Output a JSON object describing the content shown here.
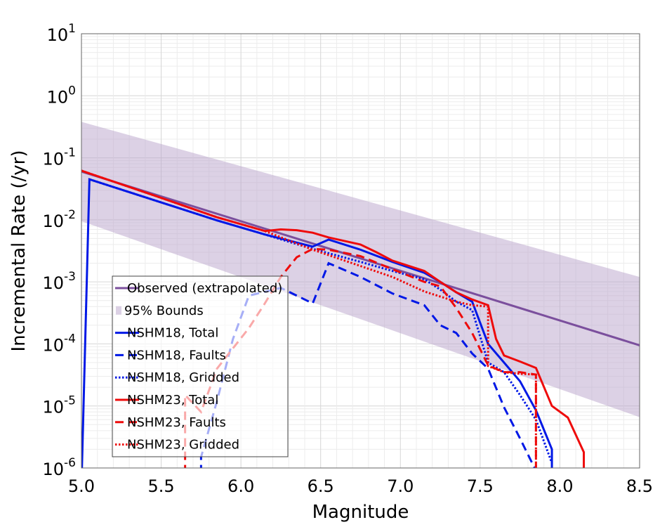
{
  "chart_data": {
    "type": "line",
    "xlabel": "Magnitude",
    "ylabel": "Incremental Rate (/yr)",
    "xlim": [
      5.0,
      8.5
    ],
    "ylim_log10": [
      -6,
      1
    ],
    "y_scale": "log",
    "grid": true,
    "x_ticks": [
      "5.0",
      "5.5",
      "6.0",
      "6.5",
      "7.0",
      "7.5",
      "8.0",
      "8.5"
    ],
    "y_ticks": [
      {
        "base": "10",
        "exp": "1"
      },
      {
        "base": "10",
        "exp": "0"
      },
      {
        "base": "10",
        "exp": "-1"
      },
      {
        "base": "10",
        "exp": "-2"
      },
      {
        "base": "10",
        "exp": "-3"
      },
      {
        "base": "10",
        "exp": "-4"
      },
      {
        "base": "10",
        "exp": "-5"
      },
      {
        "base": "10",
        "exp": "-6"
      }
    ],
    "legend_position": "bottom-left",
    "band": {
      "name": "95% Bounds",
      "color": "#b9a3cc",
      "x": [
        5.0,
        8.5
      ],
      "upper": [
        0.38,
        0.0012
      ],
      "lower": [
        0.0095,
        6.6e-06
      ]
    },
    "series": [
      {
        "name": "Observed (extrapolated)",
        "color": "#7b4f9d",
        "dash": "solid",
        "x": [
          5.0,
          8.5
        ],
        "y": [
          0.06,
          9.5e-05
        ]
      },
      {
        "name": "NSHM18, Total",
        "color": "#0018e6",
        "dash": "solid",
        "x": [
          5.0,
          5.05,
          5.45,
          5.85,
          6.15,
          6.45,
          6.55,
          6.75,
          6.95,
          7.15,
          7.25,
          7.35,
          7.45,
          7.55,
          7.65,
          7.75,
          7.85,
          7.95,
          7.95
        ],
        "y": [
          5e-07,
          0.045,
          0.021,
          0.0098,
          0.0058,
          0.0037,
          0.0048,
          0.0033,
          0.0021,
          0.0014,
          0.001,
          0.00068,
          0.00048,
          0.0001,
          5e-05,
          2.5e-05,
          8.5e-06,
          2e-06,
          5e-07
        ]
      },
      {
        "name": "NSHM18, Faults",
        "color": "#0018e6",
        "dash": "dashed",
        "x": [
          5.75,
          5.75,
          5.85,
          5.95,
          6.05,
          6.25,
          6.45,
          6.55,
          6.75,
          6.95,
          7.15,
          7.25,
          7.35,
          7.45,
          7.55,
          7.65,
          7.75,
          7.85,
          7.85
        ],
        "y": [
          5e-07,
          1.5e-06,
          1.2e-05,
          0.00012,
          0.0006,
          0.0008,
          0.00045,
          0.002,
          0.0012,
          0.00065,
          0.00042,
          0.0002,
          0.00015,
          7e-05,
          4e-05,
          9.5e-06,
          3e-06,
          9e-07,
          5e-07
        ]
      },
      {
        "name": "NSHM18, Gridded",
        "color": "#0018e6",
        "dash": "dotted",
        "x": [
          5.05,
          5.45,
          5.85,
          6.15,
          6.45,
          6.75,
          6.95,
          7.15,
          7.25,
          7.35,
          7.45,
          7.55,
          7.65,
          7.75,
          7.85,
          7.95
        ],
        "y": [
          0.045,
          0.021,
          0.0098,
          0.0058,
          0.0034,
          0.0021,
          0.0015,
          0.0011,
          0.00075,
          0.00048,
          0.00035,
          5e-05,
          3.5e-05,
          1.5e-05,
          6e-06,
          1.2e-06
        ]
      },
      {
        "name": "NSHM23, Total",
        "color": "#ee0b0b",
        "dash": "solid",
        "x": [
          5.0,
          5.45,
          5.85,
          6.15,
          6.25,
          6.35,
          6.45,
          6.55,
          6.75,
          6.85,
          6.95,
          7.15,
          7.25,
          7.35,
          7.45,
          7.55,
          7.6,
          7.65,
          7.75,
          7.85,
          7.95,
          8.05,
          8.15,
          8.15
        ],
        "y": [
          0.062,
          0.025,
          0.011,
          0.0066,
          0.007,
          0.0068,
          0.0062,
          0.0052,
          0.004,
          0.003,
          0.0022,
          0.0015,
          0.001,
          0.00068,
          0.00052,
          0.00042,
          0.00012,
          6.5e-05,
          5.2e-05,
          4.1e-05,
          1e-05,
          6.5e-06,
          1.8e-06,
          5e-07
        ]
      },
      {
        "name": "NSHM23, Faults",
        "color": "#ee0b0b",
        "dash": "dashed",
        "x": [
          5.65,
          5.65,
          5.75,
          5.85,
          6.05,
          6.15,
          6.25,
          6.35,
          6.45,
          6.55,
          6.75,
          6.95,
          7.15,
          7.25,
          7.35,
          7.45,
          7.55,
          7.65,
          7.75,
          7.85,
          7.85
        ],
        "y": [
          5e-07,
          1.5e-05,
          8e-06,
          4e-05,
          0.00018,
          0.00045,
          0.0012,
          0.0025,
          0.0034,
          0.0033,
          0.0026,
          0.0016,
          0.001,
          0.00085,
          0.00038,
          0.00015,
          4.5e-05,
          3.5e-05,
          3.5e-05,
          3.2e-05,
          5e-07
        ]
      },
      {
        "name": "NSHM23, Gridded",
        "color": "#ee0b0b",
        "dash": "dotted",
        "x": [
          5.0,
          5.45,
          5.85,
          6.15,
          6.45,
          6.75,
          6.95,
          7.15,
          7.25,
          7.35,
          7.45,
          7.55,
          7.55,
          7.65,
          7.75,
          7.85,
          7.85
        ],
        "y": [
          0.062,
          0.025,
          0.011,
          0.0066,
          0.0033,
          0.0018,
          0.0012,
          0.0007,
          0.00058,
          0.00048,
          0.00042,
          0.0004,
          4.4e-05,
          3.5e-05,
          3.3e-05,
          3.2e-05,
          5e-07
        ]
      }
    ]
  }
}
